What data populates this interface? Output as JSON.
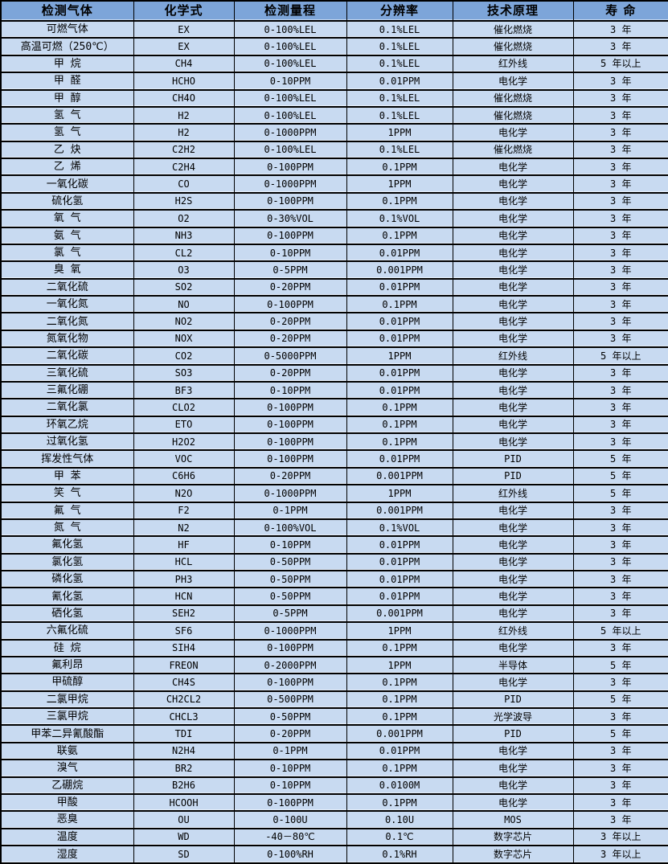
{
  "colors": {
    "header_bg": "#7DA5D9",
    "row_bg": "#C8DAF1",
    "grid": "#000000",
    "text": "#000000"
  },
  "chart_data": {
    "type": "table",
    "title": "",
    "columns": [
      "检测气体",
      "化学式",
      "检测量程",
      "分辨率",
      "技术原理",
      "寿  命"
    ],
    "rows": [
      [
        "可燃气体",
        "EX",
        "0-100%LEL",
        "0.1%LEL",
        "催化燃烧",
        "3 年"
      ],
      [
        "高温可燃（250℃）",
        "EX",
        "0-100%LEL",
        "0.1%LEL",
        "催化燃烧",
        "3 年"
      ],
      [
        "甲  烷",
        "CH4",
        "0-100%LEL",
        "0.1%LEL",
        "红外线",
        "5 年以上"
      ],
      [
        "甲  醛",
        "HCHO",
        "0-10PPM",
        "0.01PPM",
        "电化学",
        "3 年"
      ],
      [
        "甲  醇",
        "CH4O",
        "0-100%LEL",
        "0.1%LEL",
        "催化燃烧",
        "3 年"
      ],
      [
        "氢  气",
        "H2",
        "0-100%LEL",
        "0.1%LEL",
        "催化燃烧",
        "3 年"
      ],
      [
        "氢  气",
        "H2",
        "0-1000PPM",
        "1PPM",
        "电化学",
        "3 年"
      ],
      [
        "乙  炔",
        "C2H2",
        "0-100%LEL",
        "0.1%LEL",
        "催化燃烧",
        "3 年"
      ],
      [
        "乙  烯",
        "C2H4",
        "0-100PPM",
        "0.1PPM",
        "电化学",
        "3 年"
      ],
      [
        "一氧化碳",
        "CO",
        "0-1000PPM",
        "1PPM",
        "电化学",
        "3 年"
      ],
      [
        "硫化氢",
        "H2S",
        "0-100PPM",
        "0.1PPM",
        "电化学",
        "3 年"
      ],
      [
        "氧  气",
        "O2",
        "0-30%VOL",
        "0.1%VOL",
        "电化学",
        "3 年"
      ],
      [
        "氨  气",
        "NH3",
        "0-100PPM",
        "0.1PPM",
        "电化学",
        "3 年"
      ],
      [
        "氯  气",
        "CL2",
        "0-10PPM",
        "0.01PPM",
        "电化学",
        "3 年"
      ],
      [
        "臭  氧",
        "O3",
        "0-5PPM",
        "0.001PPM",
        "电化学",
        "3 年"
      ],
      [
        "二氧化硫",
        "SO2",
        "0-20PPM",
        "0.01PPM",
        "电化学",
        "3 年"
      ],
      [
        "一氧化氮",
        "NO",
        "0-100PPM",
        "0.1PPM",
        "电化学",
        "3 年"
      ],
      [
        "二氧化氮",
        "NO2",
        "0-20PPM",
        "0.01PPM",
        "电化学",
        "3 年"
      ],
      [
        "氮氧化物",
        "NOX",
        "0-20PPM",
        "0.01PPM",
        "电化学",
        "3 年"
      ],
      [
        "二氧化碳",
        "CO2",
        "0-5000PPM",
        "1PPM",
        "红外线",
        "5 年以上"
      ],
      [
        "三氧化硫",
        "SO3",
        "0-20PPM",
        "0.01PPM",
        "电化学",
        "3 年"
      ],
      [
        "三氟化硼",
        "BF3",
        "0-10PPM",
        "0.01PPM",
        "电化学",
        "3 年"
      ],
      [
        "二氧化氯",
        "CLO2",
        "0-100PPM",
        "0.1PPM",
        "电化学",
        "3 年"
      ],
      [
        "环氧乙烷",
        "ETO",
        "0-100PPM",
        "0.1PPM",
        "电化学",
        "3 年"
      ],
      [
        "过氧化氢",
        "H2O2",
        "0-100PPM",
        "0.1PPM",
        "电化学",
        "3 年"
      ],
      [
        "挥发性气体",
        "VOC",
        "0-100PPM",
        "0.01PPM",
        "PID",
        "5 年"
      ],
      [
        "甲  苯",
        "C6H6",
        "0-20PPM",
        "0.001PPM",
        "PID",
        "5 年"
      ],
      [
        "笑  气",
        "N2O",
        "0-1000PPM",
        "1PPM",
        "红外线",
        "5 年"
      ],
      [
        "氟  气",
        "F2",
        "0-1PPM",
        "0.001PPM",
        "电化学",
        "3 年"
      ],
      [
        "氮  气",
        "N2",
        "0-100%VOL",
        "0.1%VOL",
        "电化学",
        "3 年"
      ],
      [
        "氟化氢",
        "HF",
        "0-10PPM",
        "0.01PPM",
        "电化学",
        "3 年"
      ],
      [
        "氯化氢",
        "HCL",
        "0-50PPM",
        "0.01PPM",
        "电化学",
        "3 年"
      ],
      [
        "磷化氢",
        "PH3",
        "0-50PPM",
        "0.01PPM",
        "电化学",
        "3 年"
      ],
      [
        "氰化氢",
        "HCN",
        "0-50PPM",
        "0.01PPM",
        "电化学",
        "3 年"
      ],
      [
        "硒化氢",
        "SEH2",
        "0-5PPM",
        "0.001PPM",
        "电化学",
        "3 年"
      ],
      [
        "六氟化硫",
        "SF6",
        "0-1000PPM",
        "1PPM",
        "红外线",
        "5 年以上"
      ],
      [
        "硅  烷",
        "SIH4",
        "0-100PPM",
        "0.1PPM",
        "电化学",
        "3 年"
      ],
      [
        "氟利昂",
        "FREON",
        "0-2000PPM",
        "1PPM",
        "半导体",
        "5 年"
      ],
      [
        "甲硫醇",
        "CH4S",
        "0-100PPM",
        "0.1PPM",
        "电化学",
        "3 年"
      ],
      [
        "二氯甲烷",
        "CH2CL2",
        "0-500PPM",
        "0.1PPM",
        "PID",
        "5 年"
      ],
      [
        "三氯甲烷",
        "CHCL3",
        "0-50PPM",
        "0.1PPM",
        "光学波导",
        "3 年"
      ],
      [
        "甲苯二异氰酸酯",
        "TDI",
        "0-20PPM",
        "0.001PPM",
        "PID",
        "5 年"
      ],
      [
        "联氨",
        "N2H4",
        "0-1PPM",
        "0.01PPM",
        "电化学",
        "3 年"
      ],
      [
        "溴气",
        "BR2",
        "0-10PPM",
        "0.1PPM",
        "电化学",
        "3 年"
      ],
      [
        "乙硼烷",
        "B2H6",
        "0-10PPM",
        "0.0100M",
        "电化学",
        "3 年"
      ],
      [
        "甲酸",
        "HCOOH",
        "0-100PPM",
        "0.1PPM",
        "电化学",
        "3 年"
      ],
      [
        "恶臭",
        "OU",
        "0-100U",
        "0.10U",
        "MOS",
        "3 年"
      ],
      [
        "温度",
        "WD",
        "-40－80℃",
        "0.1℃",
        "数字芯片",
        "3 年以上"
      ],
      [
        "湿度",
        "SD",
        "0-100%RH",
        "0.1%RH",
        "数字芯片",
        "3 年以上"
      ]
    ]
  }
}
